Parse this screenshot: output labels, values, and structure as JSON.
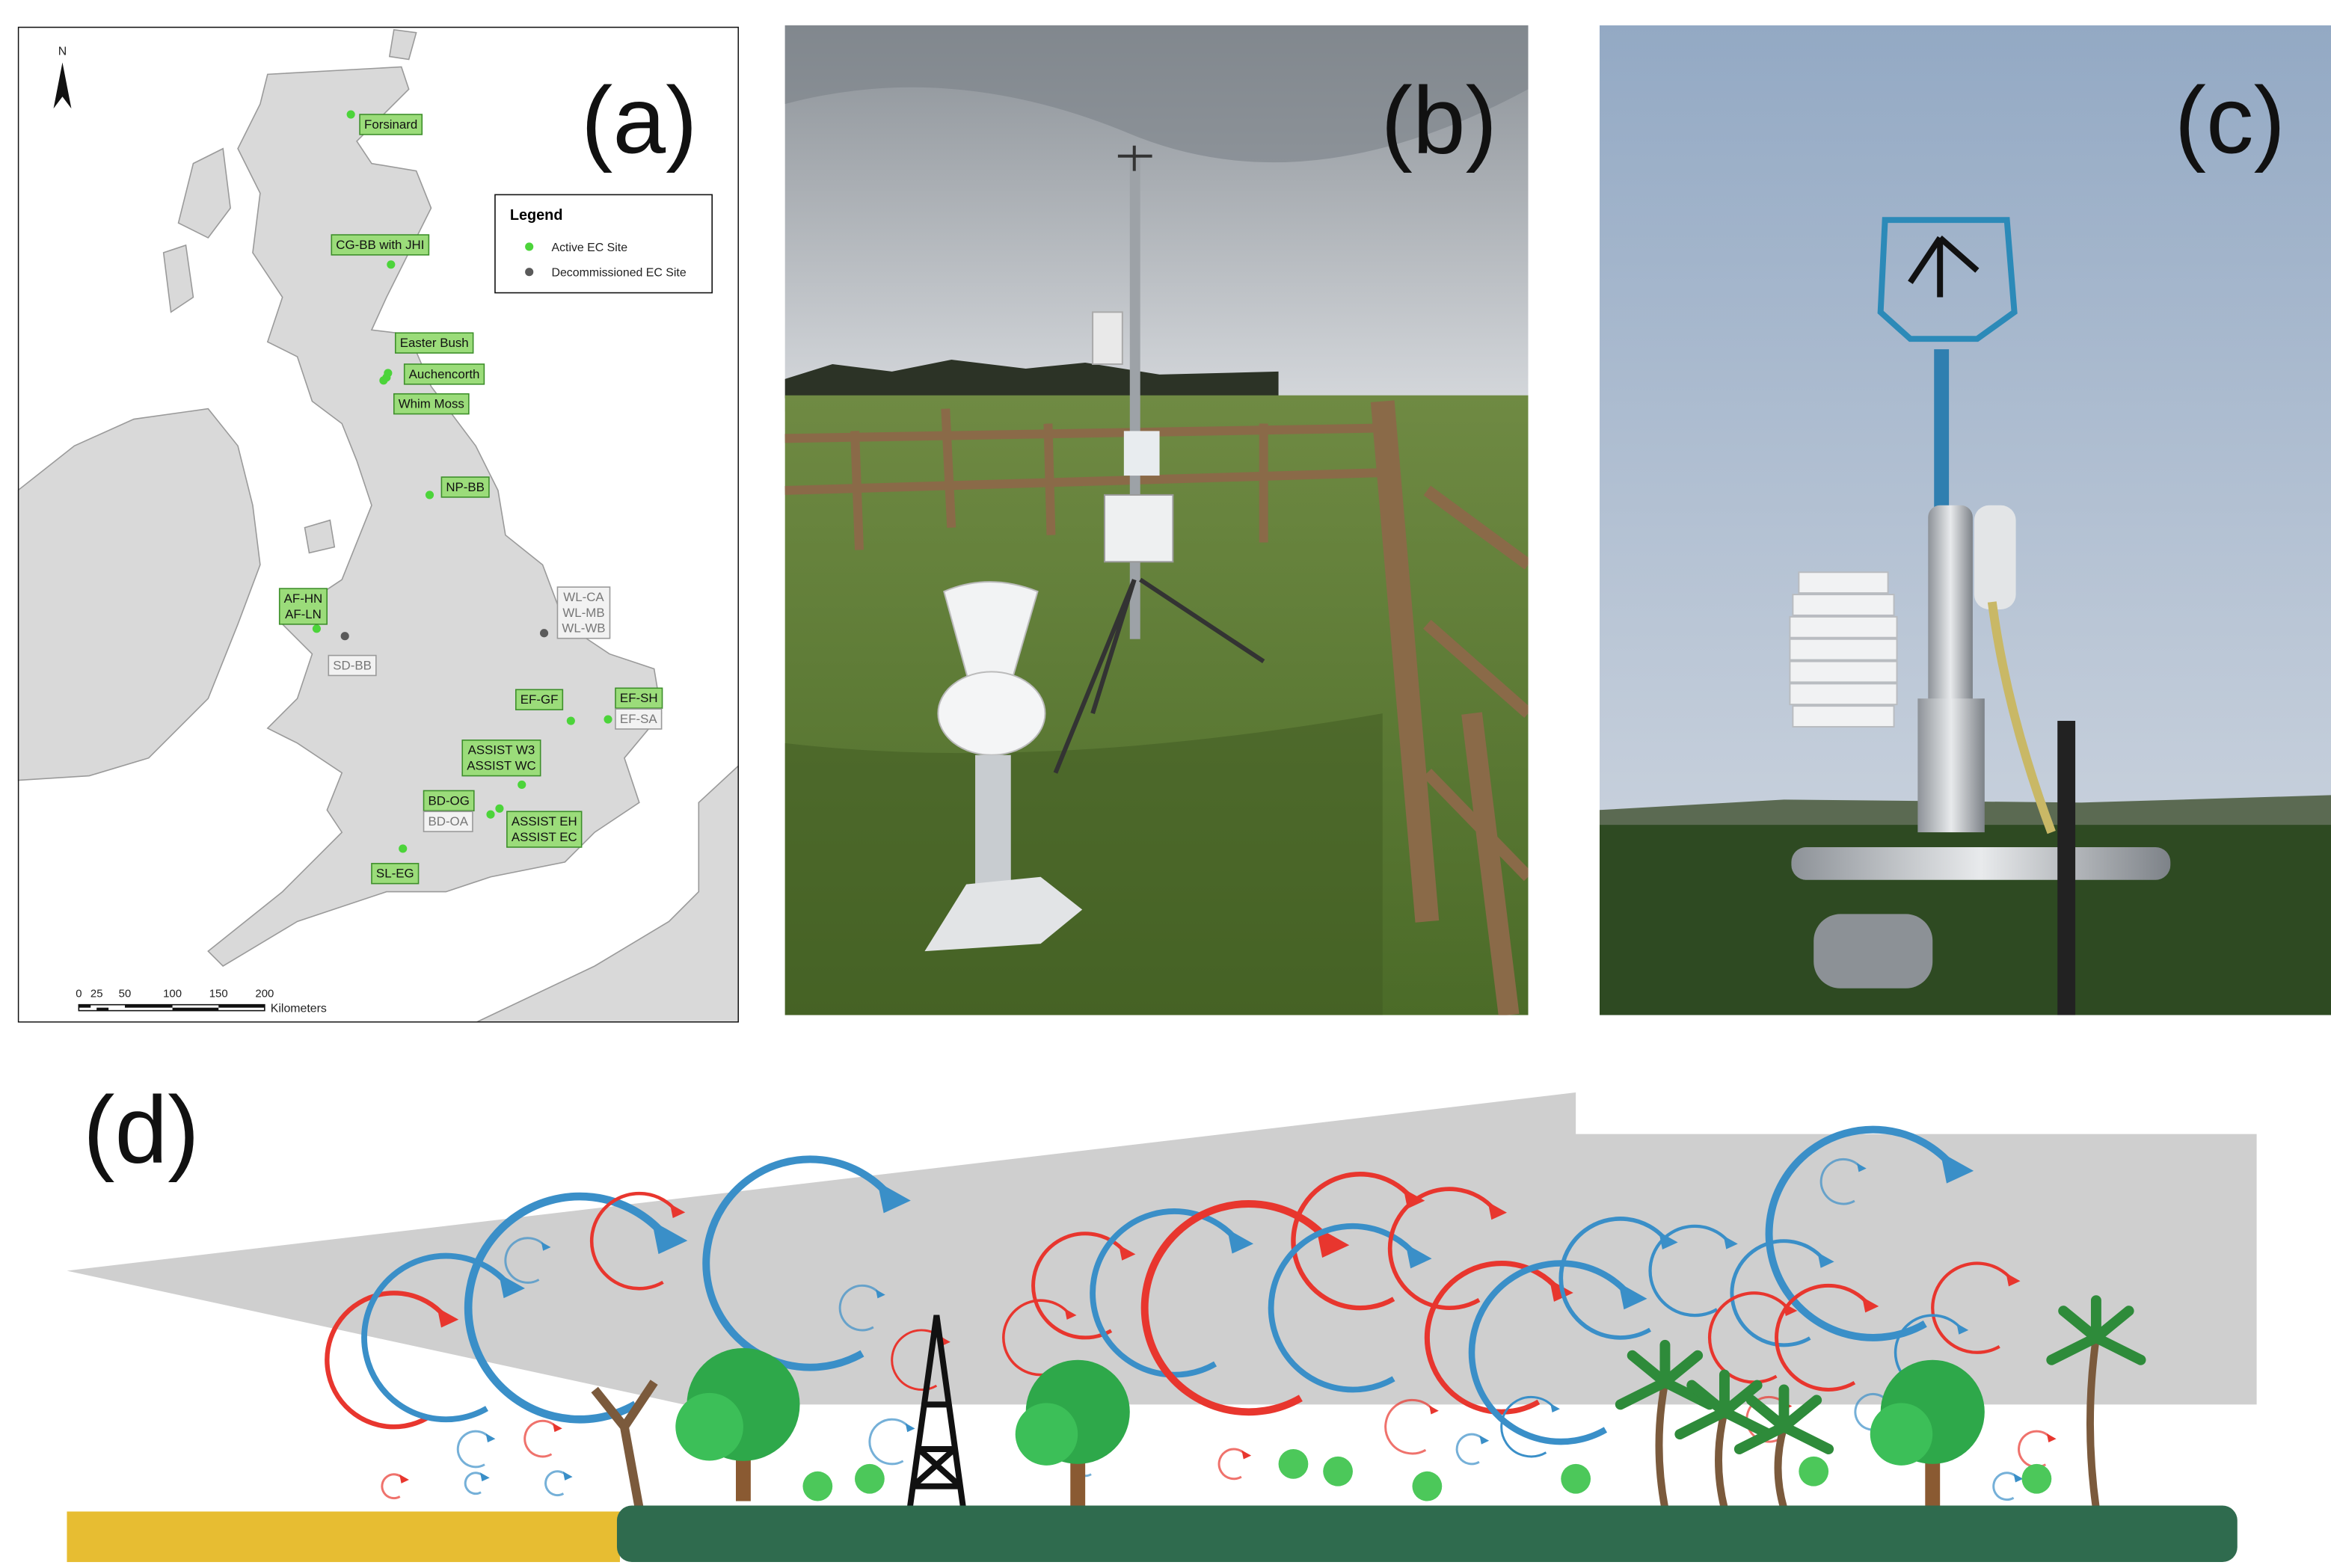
{
  "panels": {
    "a": {
      "label": "(a)",
      "north": "N",
      "legend": {
        "title": "Legend",
        "items": [
          "Active EC Site",
          "Decommissioned EC Site"
        ]
      },
      "sites": [
        {
          "lines": [
            "Forsinard"
          ]
        },
        {
          "lines": [
            "CG-BB with JHI"
          ]
        },
        {
          "lines": [
            "Easter Bush"
          ]
        },
        {
          "lines": [
            "Auchencorth"
          ]
        },
        {
          "lines": [
            "Whim Moss"
          ]
        },
        {
          "lines": [
            "NP-BB"
          ]
        },
        {
          "lines": [
            "AF-HN",
            "AF-LN"
          ]
        },
        {
          "lines": [
            "SD-BB"
          ]
        },
        {
          "lines": [
            "WL-CA",
            "WL-MB",
            "WL-WB"
          ]
        },
        {
          "lines": [
            "EF-GF"
          ]
        },
        {
          "lines": [
            "EF-SH"
          ]
        },
        {
          "lines": [
            "EF-SA"
          ]
        },
        {
          "lines": [
            "ASSIST W3",
            "ASSIST WC"
          ]
        },
        {
          "lines": [
            "BD-OG"
          ]
        },
        {
          "lines": [
            "BD-OA"
          ]
        },
        {
          "lines": [
            "ASSIST EH",
            "ASSIST EC"
          ]
        },
        {
          "lines": [
            "SL-EG"
          ]
        }
      ],
      "scale": {
        "ticks": [
          0,
          25,
          50,
          100,
          150,
          200
        ],
        "unit": "Kilometers"
      }
    },
    "b": {
      "label": "(b)"
    },
    "c": {
      "label": "(c)"
    },
    "d": {
      "label": "(d)"
    }
  }
}
